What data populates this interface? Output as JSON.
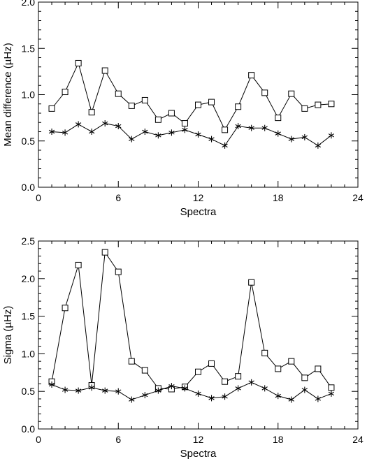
{
  "chart_data": [
    {
      "type": "line",
      "xlabel": "Spectra",
      "ylabel": "Mean difference (µHz)",
      "xlim": [
        0,
        24
      ],
      "ylim": [
        0,
        2.0
      ],
      "xticks": [
        0,
        6,
        12,
        18,
        24
      ],
      "yticks": [
        0.0,
        0.5,
        1.0,
        1.5,
        2.0
      ],
      "ytick_labels": [
        "0.0",
        "0.5",
        "1.0",
        "1.5",
        "2.0"
      ],
      "grid": false,
      "x": [
        1,
        2,
        3,
        4,
        5,
        6,
        7,
        8,
        9,
        10,
        11,
        12,
        13,
        14,
        15,
        16,
        17,
        18,
        19,
        20,
        21,
        22
      ],
      "series": [
        {
          "marker": "square",
          "values": [
            0.85,
            1.03,
            1.34,
            0.81,
            1.26,
            1.01,
            0.88,
            0.94,
            0.73,
            0.8,
            0.69,
            0.89,
            0.92,
            0.62,
            0.87,
            1.21,
            1.02,
            0.75,
            1.01,
            0.85,
            0.89,
            0.9
          ]
        },
        {
          "marker": "asterisk",
          "values": [
            0.6,
            0.59,
            0.68,
            0.6,
            0.69,
            0.66,
            0.52,
            0.6,
            0.56,
            0.59,
            0.62,
            0.57,
            0.52,
            0.45,
            0.66,
            0.64,
            0.64,
            0.58,
            0.52,
            0.54,
            0.45,
            0.56
          ]
        }
      ]
    },
    {
      "type": "line",
      "xlabel": "Spectra",
      "ylabel": "Sigma (µHz)",
      "xlim": [
        0,
        24
      ],
      "ylim": [
        0,
        2.5
      ],
      "xticks": [
        0,
        6,
        12,
        18,
        24
      ],
      "yticks": [
        0.0,
        0.5,
        1.0,
        1.5,
        2.0,
        2.5
      ],
      "ytick_labels": [
        "0.0",
        "0.5",
        "1.0",
        "1.5",
        "2.0",
        "2.5"
      ],
      "grid": false,
      "x": [
        1,
        2,
        3,
        4,
        5,
        6,
        7,
        8,
        9,
        10,
        11,
        12,
        13,
        14,
        15,
        16,
        17,
        18,
        19,
        20,
        21,
        22
      ],
      "series": [
        {
          "marker": "square",
          "values": [
            0.63,
            1.61,
            2.18,
            0.58,
            2.35,
            2.09,
            0.9,
            0.78,
            0.54,
            0.53,
            0.56,
            0.76,
            0.87,
            0.63,
            0.7,
            1.95,
            1.01,
            0.8,
            0.9,
            0.68,
            0.8,
            0.55
          ]
        },
        {
          "marker": "asterisk",
          "values": [
            0.59,
            0.52,
            0.51,
            0.55,
            0.51,
            0.5,
            0.39,
            0.45,
            0.51,
            0.57,
            0.54,
            0.47,
            0.41,
            0.43,
            0.54,
            0.62,
            0.54,
            0.44,
            0.39,
            0.52,
            0.4,
            0.47
          ]
        }
      ]
    }
  ]
}
